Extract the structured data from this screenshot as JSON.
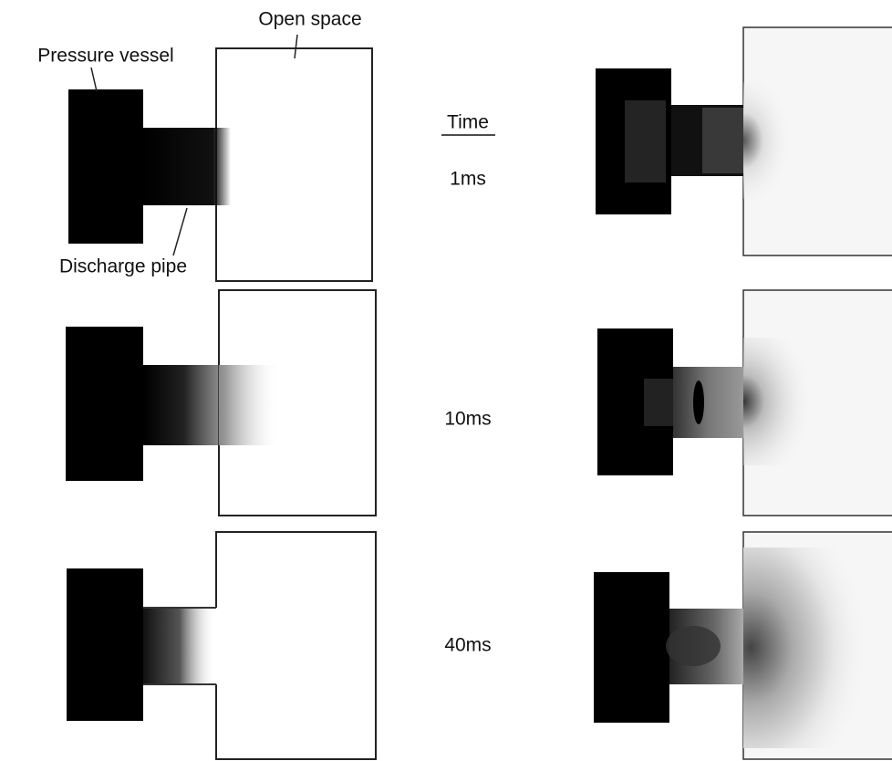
{
  "labels": {
    "open_space": "Open space",
    "pressure_vessel": "Pressure vessel",
    "discharge_pipe": "Discharge pipe"
  },
  "time_header": "Time",
  "times": [
    "1ms",
    "10ms",
    "40ms"
  ]
}
